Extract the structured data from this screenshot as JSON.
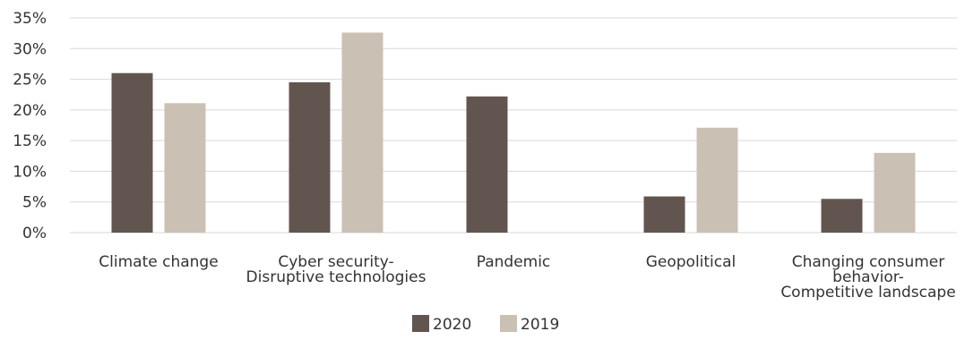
{
  "chart_data": {
    "type": "bar",
    "categories": [
      [
        "Climate change"
      ],
      [
        "Cyber security-",
        "Disruptive technologies"
      ],
      [
        "Pandemic"
      ],
      [
        "Geopolitical"
      ],
      [
        "Changing consumer",
        "behavior-",
        "Competitive landscape"
      ]
    ],
    "series": [
      {
        "name": "2020",
        "color": "#62554f",
        "values": [
          26,
          24.5,
          22.2,
          5.9,
          5.5
        ]
      },
      {
        "name": "2019",
        "color": "#cbc0b4",
        "values": [
          21.1,
          32.6,
          null,
          17.1,
          13
        ]
      }
    ],
    "ylim": [
      0,
      35
    ],
    "yticks": [
      0,
      5,
      10,
      15,
      20,
      25,
      30,
      35
    ],
    "ytick_labels": [
      "0%",
      "5%",
      "10%",
      "15%",
      "20%",
      "25%",
      "30%",
      "35%"
    ],
    "title": "",
    "xlabel": "",
    "ylabel": "",
    "grid": true,
    "legend_position": "bottom-center"
  }
}
